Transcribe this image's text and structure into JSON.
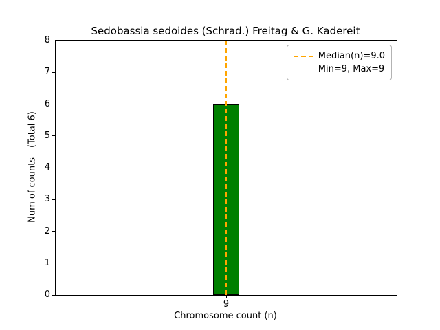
{
  "chart_data": {
    "type": "bar",
    "title": "Sedobassia sedoides (Schrad.) Freitag & G. Kadereit",
    "xlabel": "Chromosome count (n)",
    "ylabel": "Num of counts",
    "ylabel_secondary": "(Total 6)",
    "categories": [
      "9"
    ],
    "values": [
      6
    ],
    "total_counts": 6,
    "ylim": [
      0,
      8
    ],
    "yticks": [
      0,
      1,
      2,
      3,
      4,
      5,
      6,
      7,
      8
    ],
    "bar_color": "#008000",
    "bar_edge_color": "#000000",
    "median_line": {
      "value": 9.0,
      "color": "#ffa500",
      "style": "dashed"
    },
    "legend": {
      "position": "upper right",
      "entries": [
        "Median(n)=9.0",
        "Min=9, Max=9"
      ]
    },
    "grid": false,
    "background_color": "#ffffff"
  }
}
